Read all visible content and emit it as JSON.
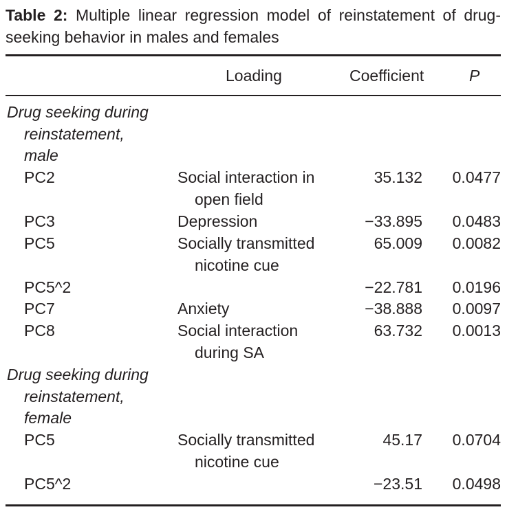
{
  "caption": {
    "label": "Table 2:",
    "text": "Multiple linear regression model of reinstatement of drug-seeking behavior in males and females"
  },
  "headers": {
    "loading": "Loading",
    "coefficient": "Coefficient",
    "p": "P"
  },
  "groups": [
    {
      "lines": [
        "Drug seeking during",
        "reinstatement,",
        "male"
      ],
      "rows": [
        {
          "pc": "PC2",
          "loading": [
            "Social interaction in",
            "open field"
          ],
          "coefficient": "35.132",
          "p": "0.0477"
        },
        {
          "pc": "PC3",
          "loading": [
            "Depression"
          ],
          "coefficient": "−33.895",
          "p": "0.0483"
        },
        {
          "pc": "PC5",
          "loading": [
            "Socially transmitted",
            "nicotine cue"
          ],
          "coefficient": "65.009",
          "p": "0.0082"
        },
        {
          "pc": "PC5^2",
          "loading": [],
          "coefficient": "−22.781",
          "p": "0.0196"
        },
        {
          "pc": "PC7",
          "loading": [
            "Anxiety"
          ],
          "coefficient": "−38.888",
          "p": "0.0097"
        },
        {
          "pc": "PC8",
          "loading": [
            "Social interaction",
            "during SA"
          ],
          "coefficient": "63.732",
          "p": "0.0013"
        }
      ]
    },
    {
      "lines": [
        "Drug seeking during",
        "reinstatement,",
        "female"
      ],
      "rows": [
        {
          "pc": "PC5",
          "loading": [
            "Socially transmitted",
            "nicotine cue"
          ],
          "coefficient": "45.17",
          "p": "0.0704"
        },
        {
          "pc": "PC5^2",
          "loading": [],
          "coefficient": "−23.51",
          "p": "0.0498"
        }
      ]
    }
  ]
}
